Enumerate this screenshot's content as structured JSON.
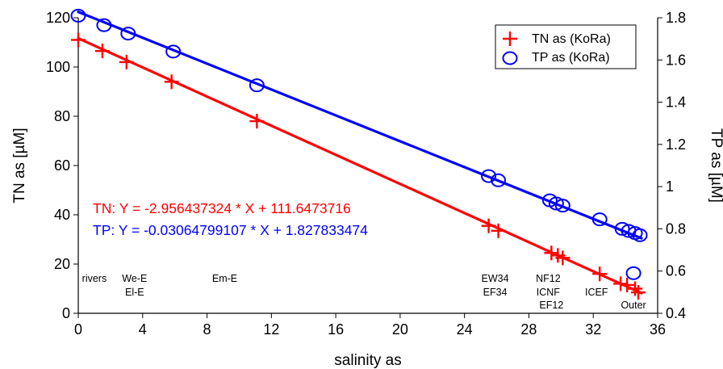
{
  "chart_data": {
    "type": "scatter",
    "xlabel": "salinity as",
    "ylabel_left": "TN as [µM]",
    "ylabel_right": "TP as [µM]",
    "xlim": [
      0,
      36
    ],
    "ylim_left": [
      0,
      120
    ],
    "ylim_right": [
      0.4,
      1.8
    ],
    "x_ticks": [
      0,
      4,
      8,
      12,
      16,
      20,
      24,
      28,
      32,
      36
    ],
    "y_ticks_left": [
      0,
      20,
      40,
      60,
      80,
      100,
      120
    ],
    "y_ticks_right": [
      "0.4",
      "0.6",
      "0.8",
      "1",
      "1.2",
      "1.4",
      "1.6",
      "1.8"
    ],
    "grid": false,
    "legend_position": "top-right",
    "series": [
      {
        "name": "TN as (KoRa)",
        "axis": "left",
        "marker": "plus",
        "color": "#ff0000",
        "x": [
          0.0,
          1.5,
          3.0,
          5.8,
          11.1,
          25.5,
          26.1,
          29.4,
          29.8,
          30.1,
          32.4,
          33.7,
          34.1,
          34.6,
          34.8
        ],
        "y": [
          111.0,
          106.5,
          102.0,
          94.0,
          78.0,
          35.5,
          33.5,
          24.5,
          23.5,
          22.5,
          16.0,
          12.0,
          11.5,
          10.0,
          8.5
        ],
        "regression": {
          "slope": -2.956437324,
          "intercept": 111.6473716,
          "x_range": [
            0,
            35
          ]
        }
      },
      {
        "name": "TP as (KoRa)",
        "axis": "right",
        "marker": "circle",
        "color": "#0000ff",
        "x": [
          0.0,
          1.6,
          3.1,
          5.9,
          11.1,
          25.5,
          26.1,
          29.3,
          29.7,
          30.1,
          32.4,
          33.8,
          34.2,
          34.6,
          34.9,
          34.5
        ],
        "y": [
          1.81,
          1.765,
          1.725,
          1.64,
          1.48,
          1.05,
          1.03,
          0.935,
          0.92,
          0.91,
          0.845,
          0.8,
          0.79,
          0.78,
          0.77,
          0.59
        ],
        "regression": {
          "slope": -0.03064799107,
          "intercept": 1.827833474,
          "x_range": [
            0,
            35
          ]
        }
      }
    ],
    "equations": [
      {
        "text": "TN:  Y = -2.956437324 * X + 111.6473716",
        "color": "#ff0000"
      },
      {
        "text": "TP: Y = -0.03064799107 * X + 1.827833474",
        "color": "#0000ff"
      }
    ],
    "annotations": [
      {
        "x": 1.0,
        "line": 0,
        "text": "rivers"
      },
      {
        "x": 3.5,
        "line": 0,
        "text": "We-E"
      },
      {
        "x": 3.5,
        "line": 1,
        "text": "El-E"
      },
      {
        "x": 9.1,
        "line": 0,
        "text": "Em-E"
      },
      {
        "x": 25.9,
        "line": 0,
        "text": "EW34"
      },
      {
        "x": 25.9,
        "line": 1,
        "text": "EF34"
      },
      {
        "x": 29.2,
        "line": 0,
        "text": "NF12"
      },
      {
        "x": 29.2,
        "line": 1,
        "text": "ICNF"
      },
      {
        "x": 29.4,
        "line": 2,
        "text": "EF12"
      },
      {
        "x": 32.2,
        "line": 1,
        "text": "ICEF"
      },
      {
        "x": 34.5,
        "line": 2,
        "text": "Outer"
      }
    ]
  }
}
